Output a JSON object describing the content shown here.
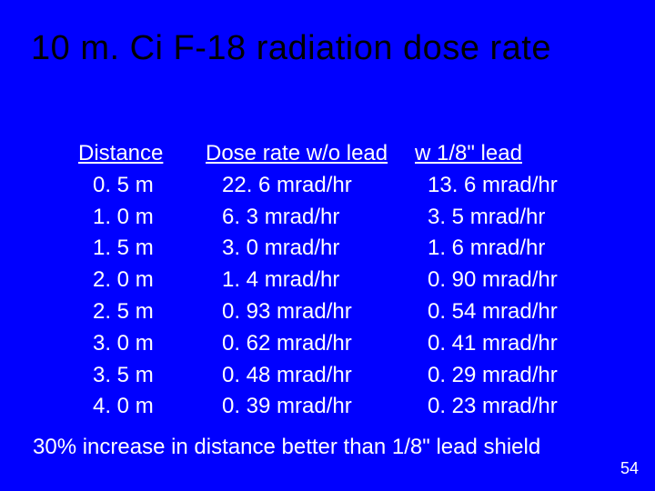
{
  "background_color": "#0000ff",
  "title_color": "#000000",
  "text_color": "#ffffff",
  "title_fontsize": 38,
  "body_fontsize": 24,
  "pagenum_fontsize": 18,
  "title": "10 m. Ci F-18 radiation dose rate",
  "table": {
    "headers": {
      "distance": "Distance",
      "dose_wo_lead": "Dose rate w/o lead",
      "dose_w_lead": "w 1/8\" lead"
    },
    "rows": [
      {
        "distance": "0. 5 m",
        "dose_wo_lead": "22. 6 mrad/hr",
        "dose_w_lead": "13. 6 mrad/hr"
      },
      {
        "distance": "1. 0 m",
        "dose_wo_lead": "6. 3 mrad/hr",
        "dose_w_lead": "3. 5 mrad/hr"
      },
      {
        "distance": "1. 5 m",
        "dose_wo_lead": "3. 0 mrad/hr",
        "dose_w_lead": "1. 6 mrad/hr"
      },
      {
        "distance": "2. 0 m",
        "dose_wo_lead": "1. 4 mrad/hr",
        "dose_w_lead": "0. 90 mrad/hr"
      },
      {
        "distance": "2. 5 m",
        "dose_wo_lead": "0. 93 mrad/hr",
        "dose_w_lead": "0. 54 mrad/hr"
      },
      {
        "distance": "3. 0 m",
        "dose_wo_lead": "0. 62 mrad/hr",
        "dose_w_lead": "0. 41 mrad/hr"
      },
      {
        "distance": "3. 5 m",
        "dose_wo_lead": "0. 48 mrad/hr",
        "dose_w_lead": "0. 29 mrad/hr"
      },
      {
        "distance": "4. 0 m",
        "dose_wo_lead": "0. 39 mrad/hr",
        "dose_w_lead": "0. 23 mrad/hr"
      }
    ]
  },
  "footer": "30% increase in distance better than 1/8\" lead shield",
  "page_number": "54"
}
